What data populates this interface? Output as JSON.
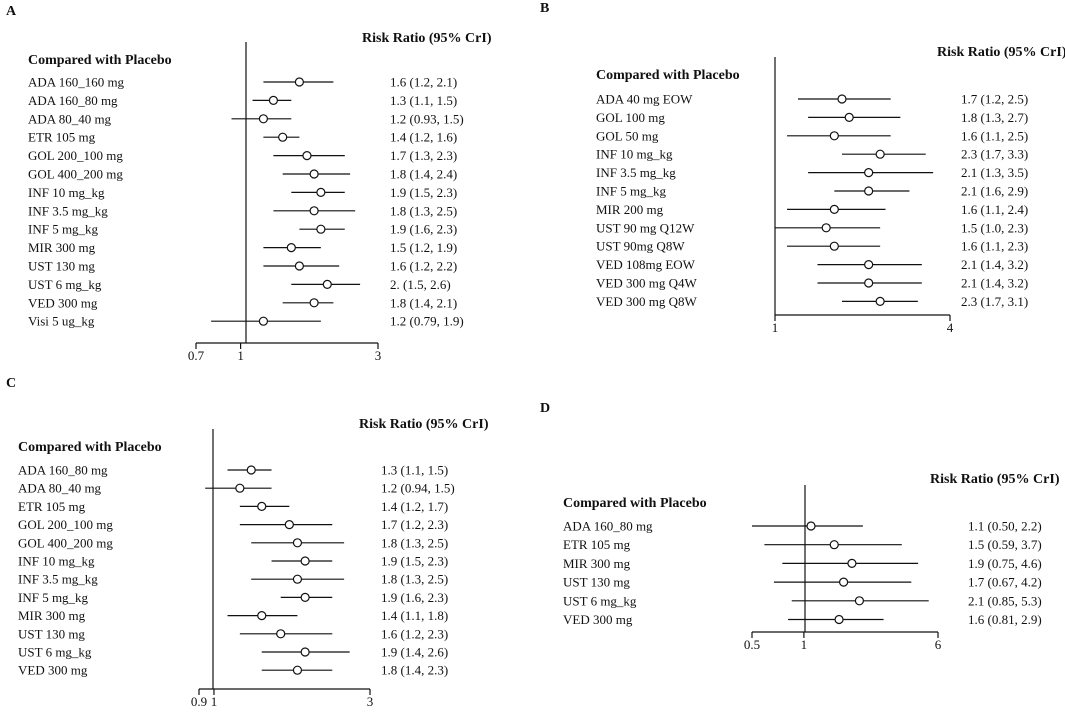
{
  "chart_data": [
    {
      "type": "forest",
      "panel": "A",
      "heading": "Compared with Placebo",
      "value_header": "Risk Ratio (95% CrI)",
      "xscale": "log",
      "xlim": [
        0.7,
        3
      ],
      "reference": 1,
      "ticks": [
        {
          "value": 0.7,
          "label": "0.7"
        },
        {
          "value": 1,
          "label": "1"
        },
        {
          "value": 3,
          "label": "3"
        }
      ],
      "rows": [
        {
          "label": "ADA 160_160 mg",
          "est": 1.6,
          "lo": 1.2,
          "hi": 2.1,
          "text": "1.6 (1.2, 2.1)"
        },
        {
          "label": "ADA  160_80 mg",
          "est": 1.3,
          "lo": 1.1,
          "hi": 1.5,
          "text": "1.3 (1.1, 1.5)"
        },
        {
          "label": "ADA 80_40 mg",
          "est": 1.2,
          "lo": 0.93,
          "hi": 1.5,
          "text": "1.2 (0.93, 1.5)"
        },
        {
          "label": "ETR 105 mg",
          "est": 1.4,
          "lo": 1.2,
          "hi": 1.6,
          "text": "1.4 (1.2, 1.6)"
        },
        {
          "label": "GOL 200_100 mg",
          "est": 1.7,
          "lo": 1.3,
          "hi": 2.3,
          "text": "1.7 (1.3, 2.3)"
        },
        {
          "label": "GOL 400_200 mg",
          "est": 1.8,
          "lo": 1.4,
          "hi": 2.4,
          "text": "1.8 (1.4, 2.4)"
        },
        {
          "label": "INF 10 mg_kg",
          "est": 1.9,
          "lo": 1.5,
          "hi": 2.3,
          "text": "1.9 (1.5, 2.3)"
        },
        {
          "label": "INF 3.5 mg_kg",
          "est": 1.8,
          "lo": 1.3,
          "hi": 2.5,
          "text": "1.8 (1.3, 2.5)"
        },
        {
          "label": "INF 5 mg_kg",
          "est": 1.9,
          "lo": 1.6,
          "hi": 2.3,
          "text": "1.9 (1.6, 2.3)"
        },
        {
          "label": "MIR 300 mg",
          "est": 1.5,
          "lo": 1.2,
          "hi": 1.9,
          "text": "1.5 (1.2, 1.9)"
        },
        {
          "label": "UST 130 mg",
          "est": 1.6,
          "lo": 1.2,
          "hi": 2.2,
          "text": "1.6 (1.2, 2.2)"
        },
        {
          "label": "UST 6 mg_kg",
          "est": 2.0,
          "lo": 1.5,
          "hi": 2.6,
          "text": "2. (1.5, 2.6)"
        },
        {
          "label": "VED 300 mg",
          "est": 1.8,
          "lo": 1.4,
          "hi": 2.1,
          "text": "1.8 (1.4, 2.1)"
        },
        {
          "label": "Visi 5 ug_kg",
          "est": 1.2,
          "lo": 0.79,
          "hi": 1.9,
          "text": "1.2 (0.79, 1.9)"
        }
      ]
    },
    {
      "type": "forest",
      "panel": "B",
      "heading": "Compared with Placebo",
      "value_header": "Risk Ratio (95% CrI)",
      "xscale": "log",
      "xlim": [
        1,
        4
      ],
      "reference": 1,
      "ticks": [
        {
          "value": 1,
          "label": "1"
        },
        {
          "value": 4,
          "label": "4"
        }
      ],
      "rows": [
        {
          "label": "ADA 40 mg EOW",
          "est": 1.7,
          "lo": 1.2,
          "hi": 2.5,
          "text": "1.7 (1.2, 2.5)"
        },
        {
          "label": "GOL 100 mg",
          "est": 1.8,
          "lo": 1.3,
          "hi": 2.7,
          "text": "1.8 (1.3, 2.7)"
        },
        {
          "label": "GOL 50 mg",
          "est": 1.6,
          "lo": 1.1,
          "hi": 2.5,
          "text": "1.6 (1.1, 2.5)"
        },
        {
          "label": "INF 10 mg_kg",
          "est": 2.3,
          "lo": 1.7,
          "hi": 3.3,
          "text": "2.3 (1.7, 3.3)"
        },
        {
          "label": "INF 3.5 mg_kg",
          "est": 2.1,
          "lo": 1.3,
          "hi": 3.5,
          "text": "2.1 (1.3, 3.5)"
        },
        {
          "label": "INF 5 mg_kg",
          "est": 2.1,
          "lo": 1.6,
          "hi": 2.9,
          "text": "2.1 (1.6, 2.9)"
        },
        {
          "label": "MIR 200 mg",
          "est": 1.6,
          "lo": 1.1,
          "hi": 2.4,
          "text": "1.6 (1.1, 2.4)"
        },
        {
          "label": "UST 90 mg Q12W",
          "est": 1.5,
          "lo": 1.0,
          "hi": 2.3,
          "text": "1.5 (1.0, 2.3)"
        },
        {
          "label": "UST 90mg Q8W",
          "est": 1.6,
          "lo": 1.1,
          "hi": 2.3,
          "text": "1.6 (1.1, 2.3)"
        },
        {
          "label": "VED 108mg EOW",
          "est": 2.1,
          "lo": 1.4,
          "hi": 3.2,
          "text": "2.1 (1.4, 3.2)"
        },
        {
          "label": "VED 300 mg Q4W",
          "est": 2.1,
          "lo": 1.4,
          "hi": 3.2,
          "text": "2.1 (1.4, 3.2)"
        },
        {
          "label": "VED 300 mg Q8W",
          "est": 2.3,
          "lo": 1.7,
          "hi": 3.1,
          "text": "2.3 (1.7, 3.1)"
        }
      ]
    },
    {
      "type": "forest",
      "panel": "C",
      "heading": "Compared with Placebo",
      "value_header": "Risk Ratio (95% CrI)",
      "xscale": "log",
      "xlim": [
        0.9,
        3
      ],
      "reference": 1,
      "ticks": [
        {
          "value": 0.9,
          "label": "0.9"
        },
        {
          "value": 1,
          "label": "1"
        },
        {
          "value": 3,
          "label": "3"
        }
      ],
      "rows": [
        {
          "label": "ADA 160_80 mg",
          "est": 1.3,
          "lo": 1.1,
          "hi": 1.5,
          "text": "1.3 (1.1, 1.5)"
        },
        {
          "label": "ADA 80_40 mg",
          "est": 1.2,
          "lo": 0.94,
          "hi": 1.5,
          "text": "1.2 (0.94, 1.5)"
        },
        {
          "label": "ETR 105 mg",
          "est": 1.4,
          "lo": 1.2,
          "hi": 1.7,
          "text": "1.4 (1.2, 1.7)"
        },
        {
          "label": "GOL 200_100 mg",
          "est": 1.7,
          "lo": 1.2,
          "hi": 2.3,
          "text": "1.7 (1.2, 2.3)"
        },
        {
          "label": "GOL 400_200 mg",
          "est": 1.8,
          "lo": 1.3,
          "hi": 2.5,
          "text": "1.8 (1.3, 2.5)"
        },
        {
          "label": "INF 10 mg_kg",
          "est": 1.9,
          "lo": 1.5,
          "hi": 2.3,
          "text": "1.9 (1.5, 2.3)"
        },
        {
          "label": "INF 3.5 mg_kg",
          "est": 1.8,
          "lo": 1.3,
          "hi": 2.5,
          "text": "1.8 (1.3, 2.5)"
        },
        {
          "label": "INF 5 mg_kg",
          "est": 1.9,
          "lo": 1.6,
          "hi": 2.3,
          "text": "1.9 (1.6, 2.3)"
        },
        {
          "label": "MIR 300 mg",
          "est": 1.4,
          "lo": 1.1,
          "hi": 1.8,
          "text": "1.4 (1.1, 1.8)"
        },
        {
          "label": "UST 130 mg",
          "est": 1.6,
          "lo": 1.2,
          "hi": 2.3,
          "text": "1.6 (1.2, 2.3)"
        },
        {
          "label": "UST 6 mg_kg",
          "est": 1.9,
          "lo": 1.4,
          "hi": 2.6,
          "text": "1.9 (1.4, 2.6)"
        },
        {
          "label": "VED 300 mg",
          "est": 1.8,
          "lo": 1.4,
          "hi": 2.3,
          "text": "1.8 (1.4, 2.3)"
        }
      ]
    },
    {
      "type": "forest",
      "panel": "D",
      "heading": "Compared with Placebo",
      "value_header": "Risk Ratio (95% CrI)",
      "xscale": "log",
      "xlim": [
        0.5,
        6
      ],
      "reference": 1,
      "ticks": [
        {
          "value": 0.5,
          "label": "0.5"
        },
        {
          "value": 1,
          "label": "1"
        },
        {
          "value": 6,
          "label": "6"
        }
      ],
      "rows": [
        {
          "label": "ADA 160_80 mg",
          "est": 1.1,
          "lo": 0.5,
          "hi": 2.2,
          "text": "1.1 (0.50, 2.2)"
        },
        {
          "label": "ETR 105 mg",
          "est": 1.5,
          "lo": 0.59,
          "hi": 3.7,
          "text": "1.5 (0.59, 3.7)"
        },
        {
          "label": "MIR 300 mg",
          "est": 1.9,
          "lo": 0.75,
          "hi": 4.6,
          "text": "1.9 (0.75, 4.6)"
        },
        {
          "label": "UST 130 mg",
          "est": 1.7,
          "lo": 0.67,
          "hi": 4.2,
          "text": "1.7 (0.67, 4.2)"
        },
        {
          "label": "UST 6 mg_kg",
          "est": 2.1,
          "lo": 0.85,
          "hi": 5.3,
          "text": "2.1 (0.85, 5.3)"
        },
        {
          "label": "VED 300 mg",
          "est": 1.6,
          "lo": 0.81,
          "hi": 2.9,
          "text": "1.6 (0.81, 2.9)"
        }
      ]
    }
  ]
}
